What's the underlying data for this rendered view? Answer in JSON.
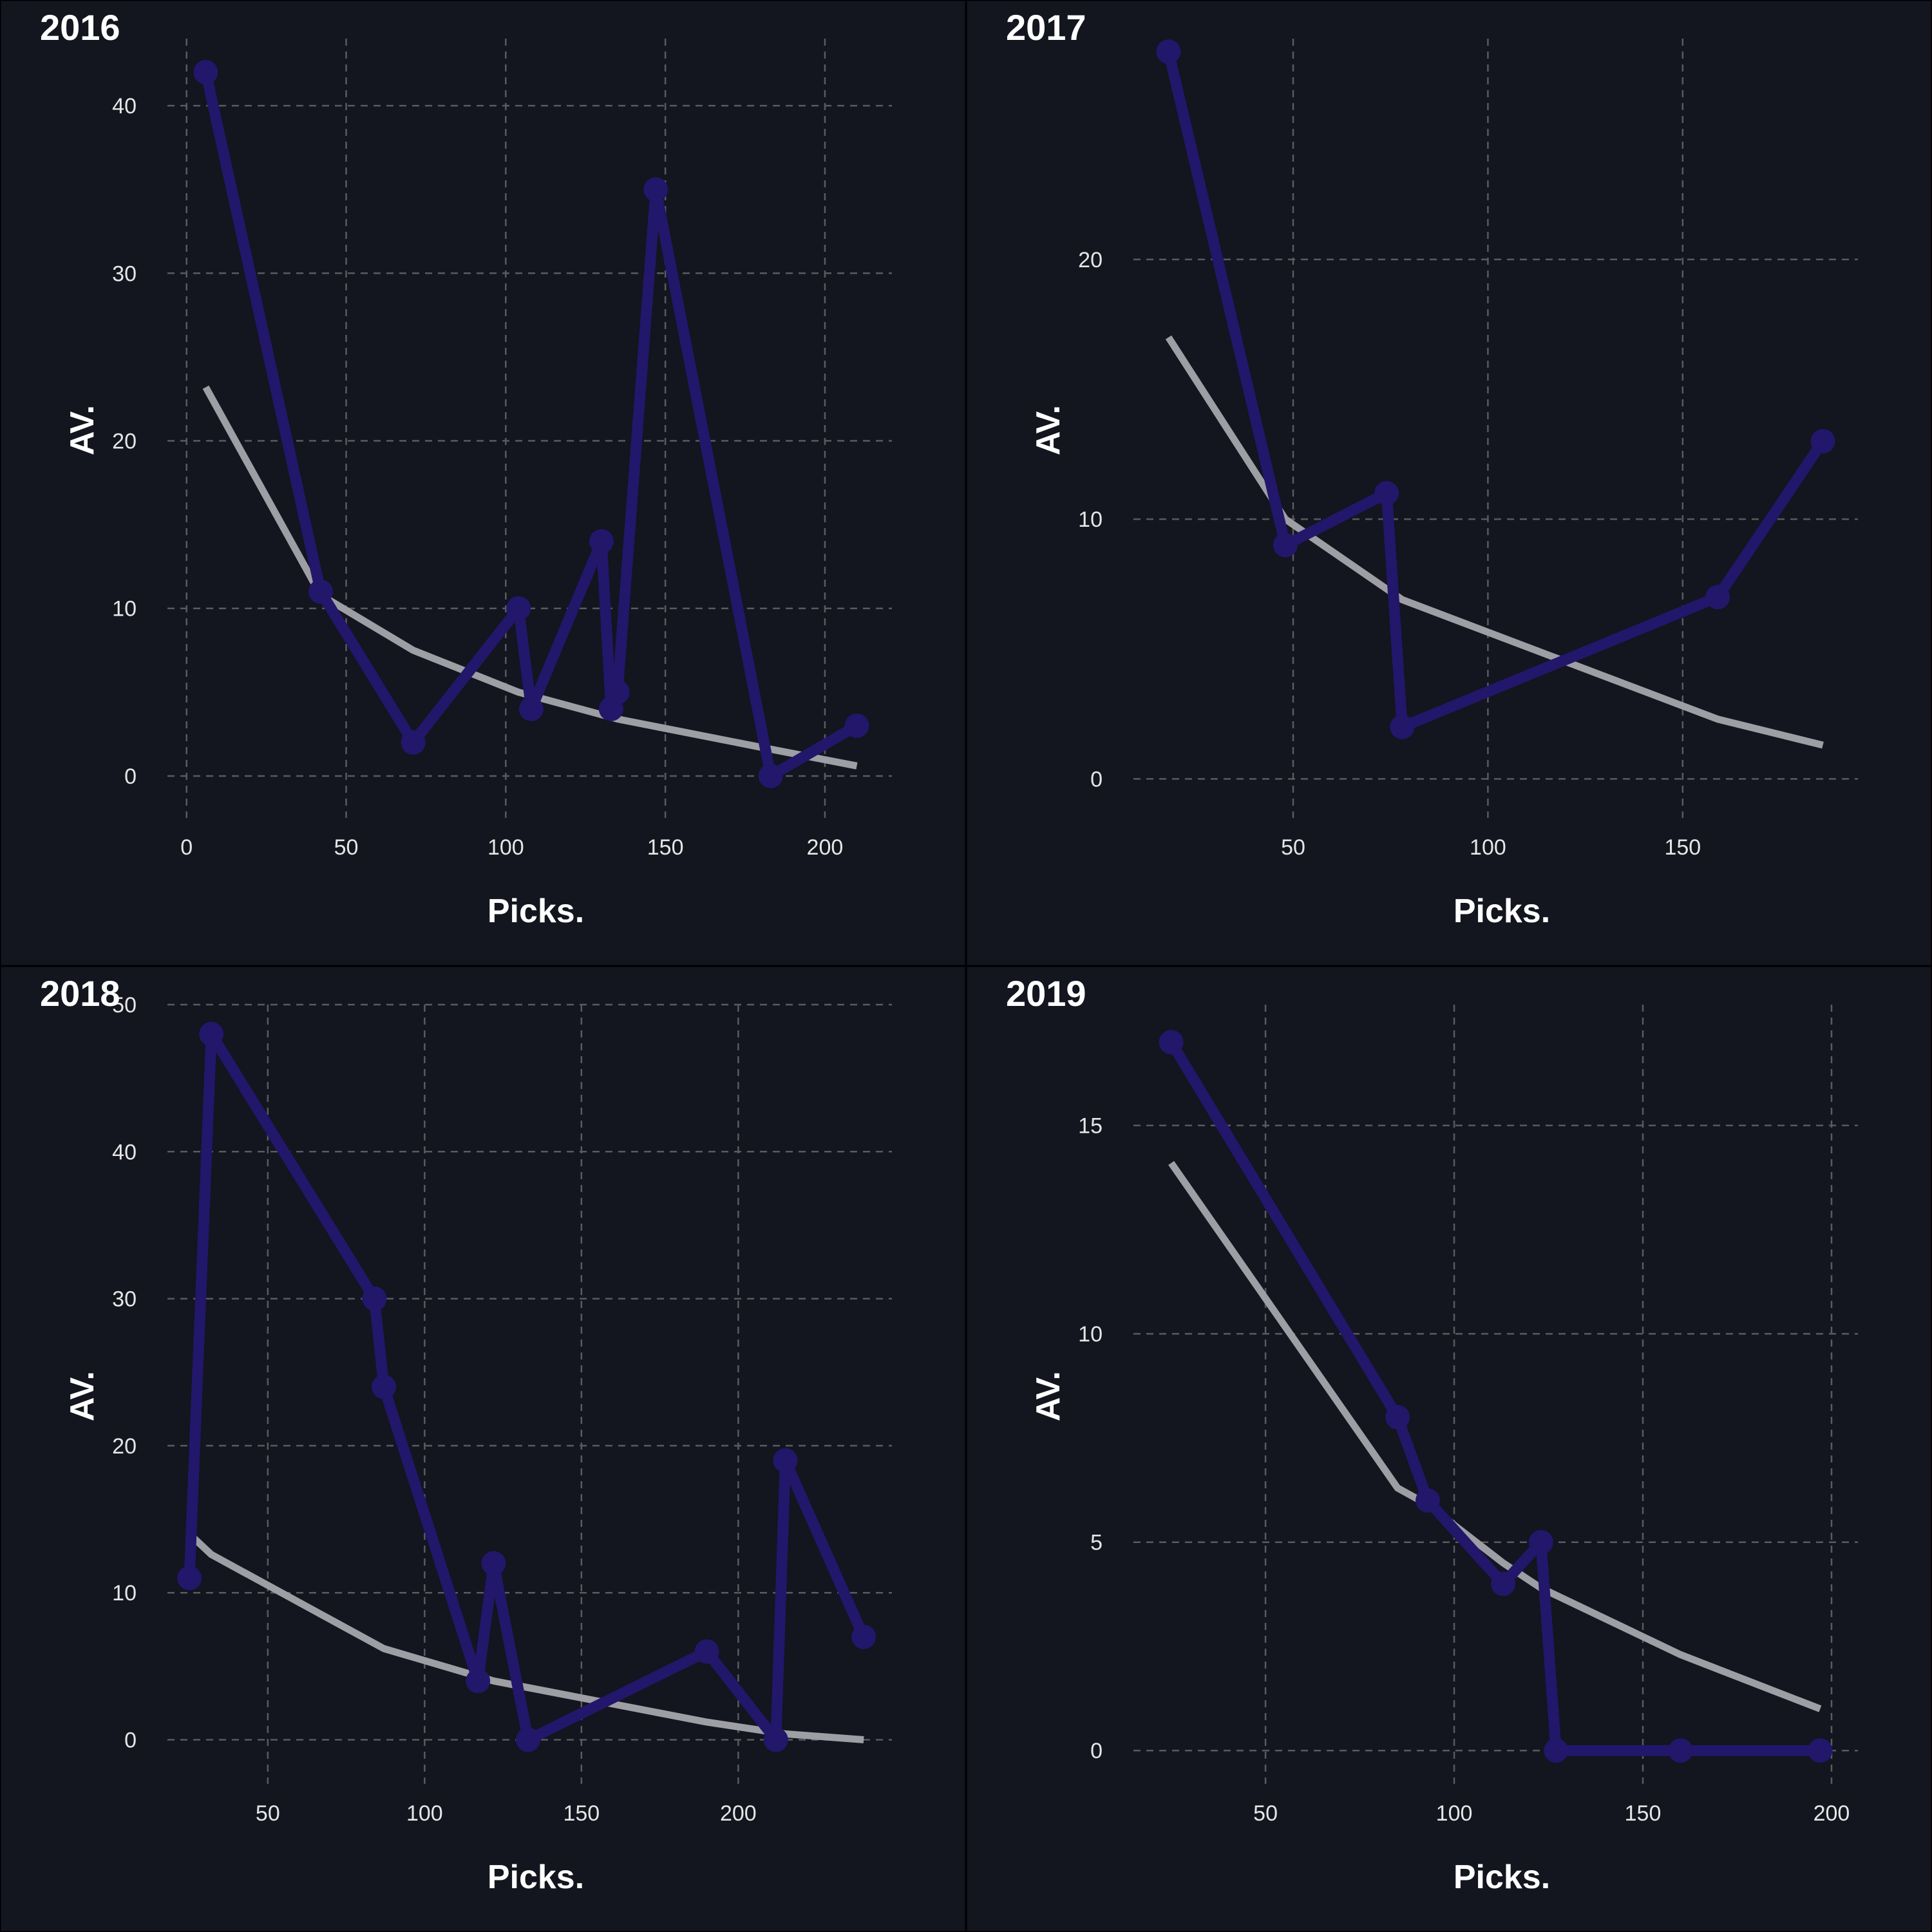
{
  "chart_data": [
    {
      "type": "line",
      "title": "2016",
      "xlabel": "Picks.",
      "ylabel": "AV.",
      "xlim": [
        -6,
        221
      ],
      "ylim": [
        -2.5,
        44
      ],
      "xticks": [
        0,
        50,
        100,
        150,
        200
      ],
      "yticks": [
        0,
        10,
        20,
        30,
        40
      ],
      "grid": true,
      "legend": "none",
      "series": [
        {
          "x": [
            6,
            42,
            71,
            104,
            108,
            130,
            133,
            135,
            147,
            183,
            210
          ],
          "y": [
            42,
            11,
            2,
            10,
            4,
            14,
            4,
            5,
            35,
            0,
            3
          ]
        }
      ],
      "trend": {
        "x": [
          6,
          42,
          71,
          104,
          135,
          183,
          210
        ],
        "y": [
          23.2,
          10.8,
          7.5,
          5.0,
          3.4,
          1.6,
          0.6
        ]
      }
    },
    {
      "type": "line",
      "title": "2017",
      "xlabel": "Picks.",
      "ylabel": "AV.",
      "xlim": [
        9,
        195
      ],
      "ylim": [
        -1.5,
        28.5
      ],
      "xticks": [
        50,
        100,
        150
      ],
      "yticks": [
        0,
        10,
        20
      ],
      "grid": true,
      "legend": "none",
      "series": [
        {
          "x": [
            18,
            48,
            74,
            78,
            159,
            186
          ],
          "y": [
            28,
            9,
            11,
            2,
            7,
            13
          ]
        }
      ],
      "trend": {
        "x": [
          18,
          48,
          78,
          159,
          186
        ],
        "y": [
          17.0,
          10.0,
          6.9,
          2.3,
          1.3
        ]
      }
    },
    {
      "type": "line",
      "title": "2018",
      "xlabel": "Picks.",
      "ylabel": "AV.",
      "xlim": [
        18,
        249
      ],
      "ylim": [
        -3,
        50
      ],
      "xticks": [
        50,
        100,
        150,
        200
      ],
      "yticks": [
        0,
        10,
        20,
        30,
        40,
        50
      ],
      "grid": true,
      "legend": "none",
      "series": [
        {
          "x": [
            25,
            32,
            84,
            87,
            117,
            122,
            133,
            190,
            212,
            215,
            240
          ],
          "y": [
            11,
            48,
            30,
            24,
            4,
            12,
            0,
            6,
            0,
            19,
            7
          ]
        }
      ],
      "trend": {
        "x": [
          25,
          32,
          87,
          122,
          190,
          215,
          240
        ],
        "y": [
          14.0,
          12.6,
          6.2,
          4.0,
          1.2,
          0.4,
          0.0
        ]
      }
    },
    {
      "type": "line",
      "title": "2019",
      "xlabel": "Picks.",
      "ylabel": "AV.",
      "xlim": [
        15,
        207
      ],
      "ylim": [
        -0.8,
        17.9
      ],
      "xticks": [
        50,
        100,
        150,
        200
      ],
      "yticks": [
        0,
        5,
        10,
        15
      ],
      "grid": true,
      "legend": "none",
      "series": [
        {
          "x": [
            25,
            85,
            93,
            113,
            123,
            127,
            160,
            197
          ],
          "y": [
            17,
            8,
            6,
            4,
            5,
            0,
            0,
            0
          ]
        }
      ],
      "trend": {
        "x": [
          25,
          85,
          93,
          113,
          123,
          160,
          197
        ],
        "y": [
          14.1,
          6.3,
          5.9,
          4.5,
          3.9,
          2.3,
          1.0
        ]
      }
    }
  ]
}
